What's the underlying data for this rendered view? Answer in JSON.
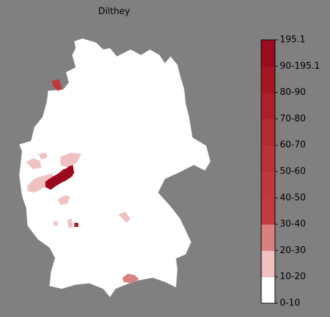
{
  "map": {
    "title": "Dilthey",
    "colorbar": {
      "labels": [
        "0-10",
        "10-20",
        "20-30",
        "30-40",
        "40-50",
        "50-60",
        "60-70",
        "70-80",
        "80-90",
        "90-195.1",
        "195.1"
      ],
      "colors": [
        "#ffffff",
        "#efc1c1",
        "#d98181",
        "#c23b3f",
        "#c0383c",
        "#bb3136",
        "#b52a30",
        "#ad2029",
        "#a61522",
        "#9b0a1e"
      ]
    }
  }
}
